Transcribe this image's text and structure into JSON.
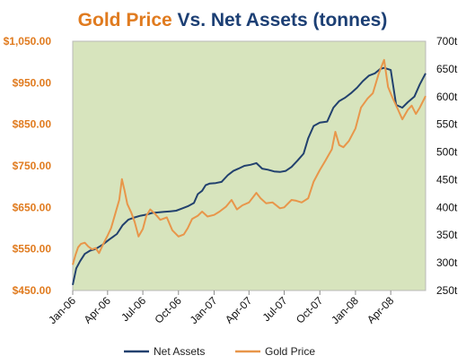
{
  "chart_data": {
    "type": "line",
    "title": {
      "part1": "Gold Price",
      "part2": " Vs. ",
      "part3": "Net Assets (tonnes)"
    },
    "colors": {
      "gold": "#e8964a",
      "assets": "#22416e",
      "title_gold": "#e07b1f",
      "title_navy": "#1c3f74",
      "left_axis_text": "#e07b1f",
      "plot_bg": "#d7e4bd"
    },
    "grid": false,
    "legend_placement": "bottom",
    "y_left": {
      "label": "Gold Price",
      "range": [
        450,
        1050
      ],
      "ticks": [
        {
          "value": 450,
          "label": "$450.00"
        },
        {
          "value": 550,
          "label": "$550.00"
        },
        {
          "value": 650,
          "label": "$650.00"
        },
        {
          "value": 750,
          "label": "$750.00"
        },
        {
          "value": 850,
          "label": "$850.00"
        },
        {
          "value": 950,
          "label": "$950.00"
        },
        {
          "value": 1050,
          "label": "$1,050.00"
        }
      ]
    },
    "y_right": {
      "label": "Net Assets",
      "range": [
        250,
        700
      ],
      "ticks": [
        {
          "value": 250,
          "label": "250t"
        },
        {
          "value": 300,
          "label": "300t"
        },
        {
          "value": 350,
          "label": "350t"
        },
        {
          "value": 400,
          "label": "400t"
        },
        {
          "value": 450,
          "label": "450t"
        },
        {
          "value": 500,
          "label": "500t"
        },
        {
          "value": 550,
          "label": "550t"
        },
        {
          "value": 600,
          "label": "600t"
        },
        {
          "value": 650,
          "label": "650t"
        },
        {
          "value": 700,
          "label": "700t"
        }
      ]
    },
    "x_axis": {
      "start": "2006-01-01",
      "end": "2008-06-30",
      "ticks": [
        {
          "date": "2006-01-01",
          "label": "Jan-06"
        },
        {
          "date": "2006-04-01",
          "label": "Apr-06"
        },
        {
          "date": "2006-07-01",
          "label": "Jul-06"
        },
        {
          "date": "2006-10-01",
          "label": "Oct-06"
        },
        {
          "date": "2007-01-01",
          "label": "Jan-07"
        },
        {
          "date": "2007-04-01",
          "label": "Apr-07"
        },
        {
          "date": "2007-07-01",
          "label": "Jul-07"
        },
        {
          "date": "2007-10-01",
          "label": "Oct-07"
        },
        {
          "date": "2008-01-01",
          "label": "Jan-08"
        },
        {
          "date": "2008-04-01",
          "label": "Apr-08"
        }
      ]
    },
    "series": [
      {
        "name": "Net Assets",
        "axis": "right",
        "points": [
          [
            "2006-01-01",
            260
          ],
          [
            "2006-01-10",
            290
          ],
          [
            "2006-01-20",
            303
          ],
          [
            "2006-02-01",
            316
          ],
          [
            "2006-02-15",
            322
          ],
          [
            "2006-03-01",
            325
          ],
          [
            "2006-03-20",
            333
          ],
          [
            "2006-04-05",
            342
          ],
          [
            "2006-04-25",
            352
          ],
          [
            "2006-05-10",
            368
          ],
          [
            "2006-05-25",
            378
          ],
          [
            "2006-06-10",
            382
          ],
          [
            "2006-06-25",
            385
          ],
          [
            "2006-07-10",
            387
          ],
          [
            "2006-07-25",
            390
          ],
          [
            "2006-08-10",
            391
          ],
          [
            "2006-08-25",
            392
          ],
          [
            "2006-09-10",
            393
          ],
          [
            "2006-09-25",
            394
          ],
          [
            "2006-10-10",
            398
          ],
          [
            "2006-10-25",
            402
          ],
          [
            "2006-11-10",
            408
          ],
          [
            "2006-11-20",
            424
          ],
          [
            "2006-12-01",
            430
          ],
          [
            "2006-12-10",
            440
          ],
          [
            "2006-12-20",
            443
          ],
          [
            "2007-01-05",
            444
          ],
          [
            "2007-01-20",
            446
          ],
          [
            "2007-02-05",
            458
          ],
          [
            "2007-02-20",
            466
          ],
          [
            "2007-03-05",
            470
          ],
          [
            "2007-03-20",
            475
          ],
          [
            "2007-04-05",
            477
          ],
          [
            "2007-04-20",
            480
          ],
          [
            "2007-05-05",
            470
          ],
          [
            "2007-05-20",
            468
          ],
          [
            "2007-06-05",
            465
          ],
          [
            "2007-06-20",
            464
          ],
          [
            "2007-07-05",
            466
          ],
          [
            "2007-07-20",
            473
          ],
          [
            "2007-08-05",
            485
          ],
          [
            "2007-08-20",
            497
          ],
          [
            "2007-09-01",
            525
          ],
          [
            "2007-09-15",
            547
          ],
          [
            "2007-10-01",
            553
          ],
          [
            "2007-10-20",
            555
          ],
          [
            "2007-11-05",
            580
          ],
          [
            "2007-11-20",
            592
          ],
          [
            "2007-12-05",
            598
          ],
          [
            "2007-12-20",
            606
          ],
          [
            "2008-01-05",
            616
          ],
          [
            "2008-01-20",
            628
          ],
          [
            "2008-02-05",
            638
          ],
          [
            "2008-02-20",
            642
          ],
          [
            "2008-03-05",
            650
          ],
          [
            "2008-03-15",
            652
          ],
          [
            "2008-04-01",
            648
          ],
          [
            "2008-04-15",
            585
          ],
          [
            "2008-05-01",
            580
          ],
          [
            "2008-05-15",
            590
          ],
          [
            "2008-06-01",
            600
          ],
          [
            "2008-06-15",
            622
          ],
          [
            "2008-06-30",
            642
          ]
        ]
      },
      {
        "name": "Gold Price",
        "axis": "left",
        "points": [
          [
            "2006-01-01",
            512
          ],
          [
            "2006-01-08",
            535
          ],
          [
            "2006-01-15",
            554
          ],
          [
            "2006-01-22",
            562
          ],
          [
            "2006-02-01",
            565
          ],
          [
            "2006-02-10",
            556
          ],
          [
            "2006-02-20",
            549
          ],
          [
            "2006-03-01",
            552
          ],
          [
            "2006-03-10",
            540
          ],
          [
            "2006-03-20",
            560
          ],
          [
            "2006-04-01",
            582
          ],
          [
            "2006-04-10",
            600
          ],
          [
            "2006-04-20",
            632
          ],
          [
            "2006-05-01",
            668
          ],
          [
            "2006-05-08",
            718
          ],
          [
            "2006-05-15",
            690
          ],
          [
            "2006-05-22",
            658
          ],
          [
            "2006-06-01",
            638
          ],
          [
            "2006-06-10",
            615
          ],
          [
            "2006-06-20",
            580
          ],
          [
            "2006-07-01",
            598
          ],
          [
            "2006-07-10",
            630
          ],
          [
            "2006-07-20",
            645
          ],
          [
            "2006-08-01",
            635
          ],
          [
            "2006-08-15",
            620
          ],
          [
            "2006-09-01",
            626
          ],
          [
            "2006-09-15",
            595
          ],
          [
            "2006-10-01",
            580
          ],
          [
            "2006-10-15",
            585
          ],
          [
            "2006-10-25",
            600
          ],
          [
            "2006-11-05",
            622
          ],
          [
            "2006-11-20",
            630
          ],
          [
            "2006-12-01",
            640
          ],
          [
            "2006-12-15",
            628
          ],
          [
            "2007-01-01",
            632
          ],
          [
            "2007-01-15",
            640
          ],
          [
            "2007-02-01",
            652
          ],
          [
            "2007-02-15",
            668
          ],
          [
            "2007-03-01",
            645
          ],
          [
            "2007-03-15",
            655
          ],
          [
            "2007-04-01",
            662
          ],
          [
            "2007-04-20",
            685
          ],
          [
            "2007-05-01",
            672
          ],
          [
            "2007-05-15",
            660
          ],
          [
            "2007-06-01",
            662
          ],
          [
            "2007-06-20",
            648
          ],
          [
            "2007-07-01",
            650
          ],
          [
            "2007-07-20",
            668
          ],
          [
            "2007-08-01",
            666
          ],
          [
            "2007-08-15",
            662
          ],
          [
            "2007-09-01",
            672
          ],
          [
            "2007-09-15",
            712
          ],
          [
            "2007-10-01",
            740
          ],
          [
            "2007-10-15",
            762
          ],
          [
            "2007-11-01",
            790
          ],
          [
            "2007-11-10",
            832
          ],
          [
            "2007-11-20",
            800
          ],
          [
            "2007-12-01",
            795
          ],
          [
            "2007-12-15",
            810
          ],
          [
            "2008-01-01",
            840
          ],
          [
            "2008-01-15",
            890
          ],
          [
            "2008-02-01",
            912
          ],
          [
            "2008-02-15",
            925
          ],
          [
            "2008-03-01",
            972
          ],
          [
            "2008-03-15",
            1005
          ],
          [
            "2008-03-25",
            940
          ],
          [
            "2008-04-05",
            915
          ],
          [
            "2008-04-20",
            885
          ],
          [
            "2008-05-01",
            862
          ],
          [
            "2008-05-15",
            885
          ],
          [
            "2008-05-25",
            895
          ],
          [
            "2008-06-05",
            875
          ],
          [
            "2008-06-15",
            890
          ],
          [
            "2008-06-30",
            918
          ]
        ]
      }
    ]
  }
}
